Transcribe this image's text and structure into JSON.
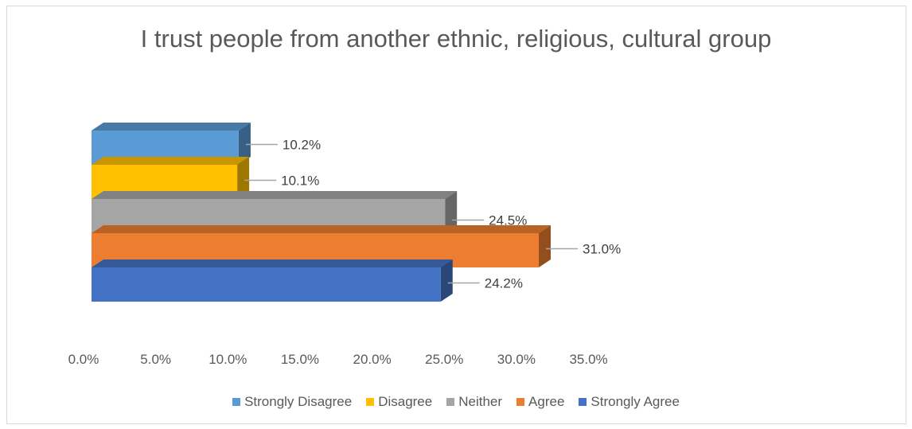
{
  "chart_data": {
    "type": "bar",
    "orientation": "horizontal",
    "style": "3d",
    "title": "I trust people from another ethnic, religious, cultural group",
    "xlim": [
      0,
      35
    ],
    "xticks": [
      "0.0%",
      "5.0%",
      "10.0%",
      "15.0%",
      "20.0%",
      "25.0%",
      "30.0%",
      "35.0%"
    ],
    "legend_position": "bottom",
    "grid": false,
    "series": [
      {
        "name": "Strongly Disagree",
        "value": 10.2,
        "label": "10.2%",
        "color": "#5B9BD5"
      },
      {
        "name": "Disagree",
        "value": 10.1,
        "label": "10.1%",
        "color": "#FFC000"
      },
      {
        "name": "Neither",
        "value": 24.5,
        "label": "24.5%",
        "color": "#A5A5A5"
      },
      {
        "name": "Agree",
        "value": 31.0,
        "label": "31.0%",
        "color": "#ED7D31"
      },
      {
        "name": "Strongly Agree",
        "value": 24.2,
        "label": "24.2%",
        "color": "#4472C4"
      }
    ]
  }
}
